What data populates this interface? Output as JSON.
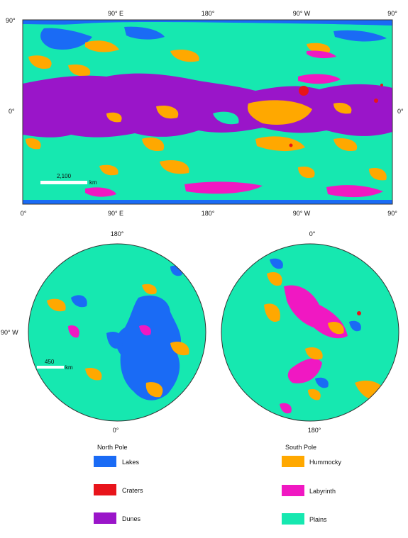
{
  "equatorial_map": {
    "top_labels": [
      "90° E",
      "180°",
      "90° W",
      "90°"
    ],
    "bottom_labels": [
      "0°",
      "90° E",
      "180°",
      "90° W",
      "90°"
    ],
    "left_labels": [
      "90°",
      "0°"
    ],
    "right_label": "0°",
    "scale_value": "2,100",
    "scale_unit": "km"
  },
  "north_pole": {
    "top_label": "180°",
    "left_label": "90° W",
    "bottom_label": "0°",
    "scale_value": "450",
    "scale_unit": "km",
    "title": "North Pole"
  },
  "south_pole": {
    "top_label": "0°",
    "bottom_label": "180°",
    "title": "South Pole"
  },
  "legend": [
    {
      "label": "Lakes",
      "color": "#1a6bf5"
    },
    {
      "label": "Craters",
      "color": "#e8141b"
    },
    {
      "label": "Dunes",
      "color": "#9a15c9"
    },
    {
      "label": "Hummocky",
      "color": "#ffa800"
    },
    {
      "label": "Labyrinth",
      "color": "#f018c2"
    },
    {
      "label": "Plains",
      "color": "#16e8b0"
    }
  ]
}
